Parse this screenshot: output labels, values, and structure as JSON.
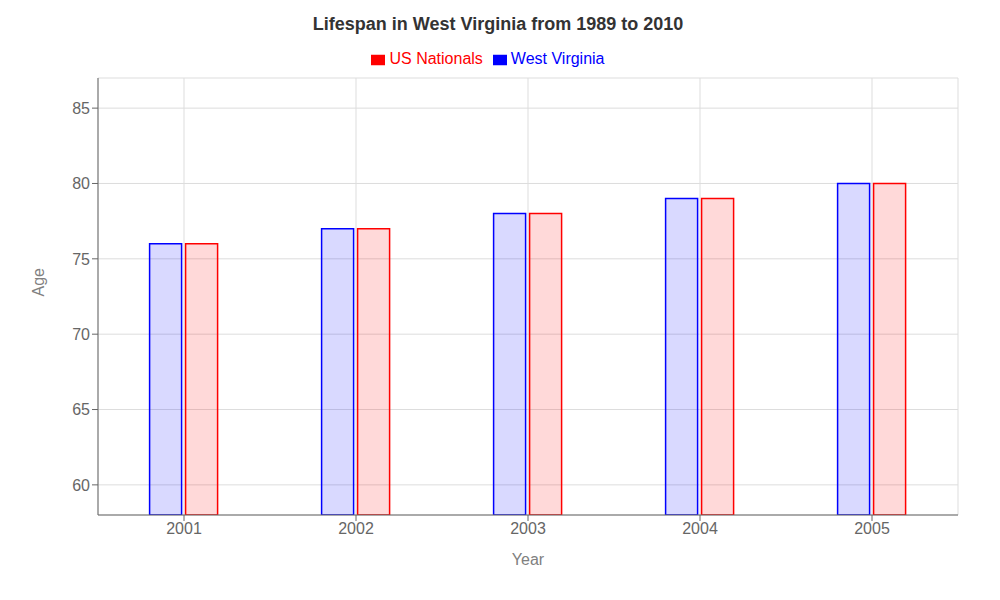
{
  "chart_data": {
    "type": "bar",
    "title": "Lifespan in West Virginia from 1989 to 2010",
    "x_label": "Year",
    "y_label": "Age",
    "categories": [
      "2001",
      "2002",
      "2003",
      "2004",
      "2005"
    ],
    "series": [
      {
        "name": "West Virginia",
        "color": "#0000ff",
        "values": [
          76,
          77,
          78,
          79,
          80
        ]
      },
      {
        "name": "US Nationals",
        "color": "#ff0000",
        "values": [
          76,
          77,
          78,
          79,
          80
        ]
      }
    ],
    "ylim": [
      58,
      87
    ],
    "yticks": [
      60,
      65,
      70,
      75,
      80,
      85
    ],
    "grid": true,
    "legend": "top"
  }
}
